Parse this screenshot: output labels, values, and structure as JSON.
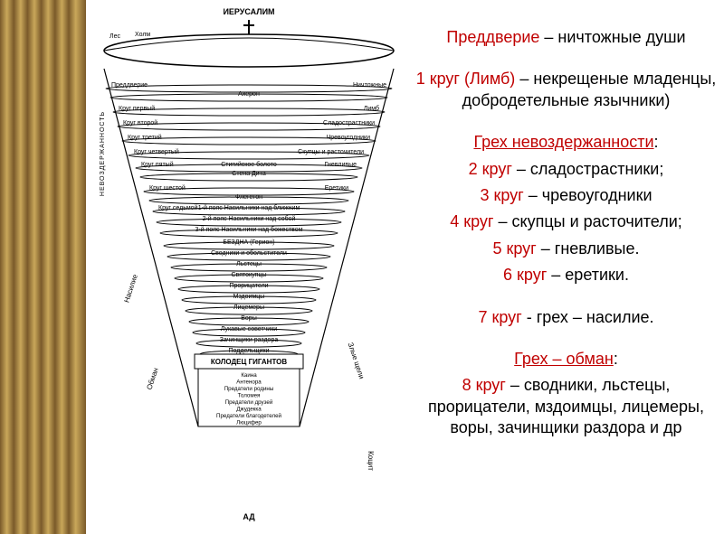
{
  "ornament": {
    "color_dark": "#7a5a2a",
    "color_light": "#c9a75a"
  },
  "diagram": {
    "top_label": "ИЕРУСАЛИМ",
    "bottom_label": "АД",
    "surface_left_labels": [
      "Лес",
      "Холм"
    ],
    "cross_symbol": "✝",
    "side_left_vert": "НЕВОЗДЕРЖАННОСТЬ",
    "side_left_diag1": "Насилие",
    "side_left_diag2": "Обман",
    "side_right_diag": "Злые щели",
    "side_right_vert": "Коцит",
    "layers": [
      {
        "left": "Преддверие",
        "center": "",
        "right": "Ничтожные"
      },
      {
        "left": "",
        "center": "Ахерон",
        "right": ""
      },
      {
        "left": "Круг первый",
        "center": "",
        "right": "Лимб"
      },
      {
        "left": "Круг второй",
        "center": "",
        "right": "Сладострастники"
      },
      {
        "left": "Круг третий",
        "center": "",
        "right": "Чревоугодники"
      },
      {
        "left": "Круг четвертый",
        "center": "",
        "right": "Скупцы и расточители"
      },
      {
        "left": "Круг пятый",
        "center": "Стигийское болото",
        "right": "Гневливые"
      },
      {
        "left": "",
        "center": "Стена Дита",
        "right": ""
      },
      {
        "left": "Круг шестой",
        "center": "",
        "right": "Еретики"
      },
      {
        "left": "",
        "center": "Флегетон",
        "right": ""
      },
      {
        "left": "Круг седьмой",
        "center": "1-й пояс   Насильники над ближним",
        "right": ""
      },
      {
        "left": "",
        "center": "2-й пояс   Насильники над собой",
        "right": ""
      },
      {
        "left": "",
        "center": "3-й пояс   Насильники над божеством",
        "right": ""
      },
      {
        "left": "",
        "center": "БЕЗДНА (Герион)",
        "right": ""
      },
      {
        "left": "",
        "center": "Сводники и обольстители",
        "right": ""
      },
      {
        "left": "",
        "center": "Льстецы",
        "right": ""
      },
      {
        "left": "",
        "center": "Святокупцы",
        "right": ""
      },
      {
        "left": "",
        "center": "Прорицатели",
        "right": ""
      },
      {
        "left": "",
        "center": "Мздоимцы",
        "right": ""
      },
      {
        "left": "",
        "center": "Лицемеры",
        "right": ""
      },
      {
        "left": "",
        "center": "Воры",
        "right": ""
      },
      {
        "left": "",
        "center": "Лукавые советчики",
        "right": ""
      },
      {
        "left": "",
        "center": "Зачинщики раздора",
        "right": ""
      },
      {
        "left": "",
        "center": "Поддельщики",
        "right": ""
      },
      {
        "left": "",
        "center": "КОЛОДЕЦ ГИГАНТОВ",
        "right": ""
      },
      {
        "left": "",
        "center": "Каина\nАнтенора\nПредатели родины\nТоломея\nПредатели друзей\nДжудекка\nПредатели благодетелей\nЛюцифер",
        "right": ""
      }
    ],
    "style": {
      "stroke": "#000000",
      "fill": "#ffffff",
      "text_color": "#000000",
      "font_size_layer": 7,
      "font_size_side": 8
    }
  },
  "text": {
    "colors": {
      "accent": "#c00000",
      "normal": "#000000"
    },
    "font_size": 18,
    "lines": [
      {
        "accent": "Преддверие",
        "rest": " – ничтожные души"
      },
      {
        "spacer": true
      },
      {
        "accent": "1 круг (Лимб)",
        "rest": " – некрещеные младенцы, добродетельные язычники)"
      },
      {
        "spacer": true
      },
      {
        "heading": "Грех невоздержанности",
        "suffix": ":"
      },
      {
        "accent": "2 круг",
        "rest": " – сладострастники;"
      },
      {
        "accent": "3 круг",
        "rest": " – чревоугодники"
      },
      {
        "accent": "4 круг",
        "rest": " – скупцы и расточители;"
      },
      {
        "accent": "5 круг",
        "rest": " – гневливые."
      },
      {
        "accent": "6 круг",
        "rest": " – еретики."
      },
      {
        "spacer": true
      },
      {
        "accent": "7 круг",
        "rest": " - грех – насилие."
      },
      {
        "spacer": true
      },
      {
        "heading": "Грех – обман",
        "suffix": ":"
      },
      {
        "accent": "8 круг",
        "rest": " – сводники, льстецы, прорицатели, мздоимцы, лицемеры, воры, зачинщики раздора и др"
      }
    ]
  }
}
